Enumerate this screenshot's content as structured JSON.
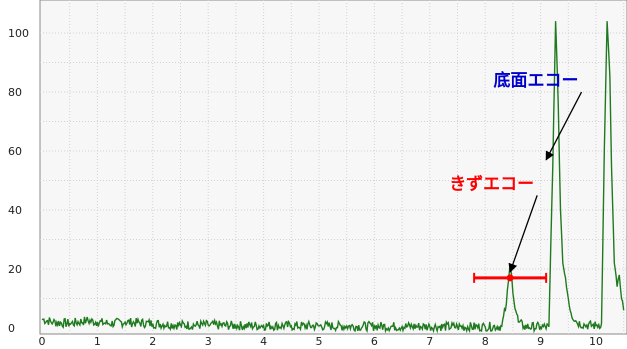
{
  "chart_data": {
    "type": "line",
    "title": "",
    "xlabel": "",
    "ylabel": "",
    "xlim": [
      0,
      10.5
    ],
    "ylim": [
      0,
      104
    ],
    "grid": true,
    "x_ticks": [
      0,
      1,
      2,
      3,
      4,
      5,
      6,
      7,
      8,
      9,
      10
    ],
    "y_ticks": [
      0,
      20,
      40,
      60,
      80,
      100
    ],
    "series": [
      {
        "color": "#1f7a1f",
        "points": [
          [
            0,
            3
          ],
          [
            0.2,
            2
          ],
          [
            0.5,
            1.5
          ],
          [
            0.8,
            2.5
          ],
          [
            1.0,
            2
          ],
          [
            1.2,
            1.5
          ],
          [
            1.5,
            2
          ],
          [
            2.0,
            1.5
          ],
          [
            2.5,
            1
          ],
          [
            3.0,
            1
          ],
          [
            3.5,
            0.8
          ],
          [
            4.0,
            0.8
          ],
          [
            4.5,
            0.7
          ],
          [
            5.0,
            0.7
          ],
          [
            5.5,
            0.6
          ],
          [
            6.0,
            0.6
          ],
          [
            6.5,
            0.5
          ],
          [
            7.0,
            0.5
          ],
          [
            7.5,
            0.4
          ],
          [
            8.0,
            0.4
          ],
          [
            8.3,
            0.6
          ],
          [
            8.38,
            8
          ],
          [
            8.42,
            16
          ],
          [
            8.45,
            21
          ],
          [
            8.48,
            17
          ],
          [
            8.52,
            9
          ],
          [
            8.6,
            2
          ],
          [
            8.7,
            0.5
          ],
          [
            9.0,
            0.3
          ],
          [
            9.15,
            0.4
          ],
          [
            9.22,
            55
          ],
          [
            9.27,
            104
          ],
          [
            9.32,
            75
          ],
          [
            9.36,
            40
          ],
          [
            9.4,
            22
          ],
          [
            9.45,
            17
          ],
          [
            9.5,
            10
          ],
          [
            9.55,
            5
          ],
          [
            9.65,
            2
          ],
          [
            9.8,
            1
          ],
          [
            10.0,
            0.8
          ],
          [
            10.1,
            1.5
          ],
          [
            10.15,
            60
          ],
          [
            10.2,
            104
          ],
          [
            10.25,
            85
          ],
          [
            10.28,
            55
          ],
          [
            10.33,
            22
          ],
          [
            10.38,
            14
          ],
          [
            10.42,
            18
          ],
          [
            10.46,
            10
          ],
          [
            10.5,
            6
          ]
        ]
      }
    ],
    "annotations": [
      {
        "text": "底面エコー",
        "color": "#0000cc",
        "label_x": 8.15,
        "label_y": 82,
        "arrow_to": [
          9.1,
          57
        ]
      },
      {
        "text": "きずエコー",
        "color": "#ff0000",
        "label_x": 7.35,
        "label_y": 47,
        "arrow_to": [
          8.45,
          19
        ]
      }
    ],
    "error_bar": {
      "center_x": 8.45,
      "y": 17,
      "x_from": 7.8,
      "x_to": 9.1,
      "color": "#ff0000"
    }
  }
}
